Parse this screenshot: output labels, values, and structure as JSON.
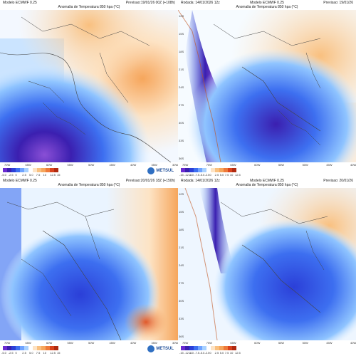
{
  "panels": [
    {
      "id": "tl",
      "model": "Modelo ECMWF 0.25",
      "left_text": "",
      "forecast": "Previsao:19/01/26 00Z (+108h)",
      "title": "Anomalia de Temperatura 850 hpa (°C)",
      "lat_labels": [],
      "lon_labels": [
        "70W",
        "65W",
        "60W",
        "55W",
        "50W",
        "45W",
        "40W",
        "35W",
        "30W"
      ],
      "legend_ticks": [
        "-5.0",
        "-2.5",
        "0",
        "2.5",
        "5.0",
        "7.5",
        "10",
        "12.5",
        "15"
      ],
      "show_logo": true,
      "logo_text": "METSUL"
    },
    {
      "id": "tr",
      "model": "Modelo ECMWF 0.25",
      "left_text": "Rodada: 14/01/2026 12z",
      "forecast": "Previsao: 19/01/26",
      "title": "Anomalia de Temperatura 850 hpa (°C)",
      "lat_labels": [
        "12S",
        "15S",
        "18S",
        "21S",
        "24S",
        "27S",
        "30S",
        "33S",
        "36S"
      ],
      "lon_labels": [
        "75W",
        "70W",
        "65W",
        "60W",
        "55W",
        "50W",
        "45W",
        "40W"
      ],
      "legend_ticks": [
        "-15",
        "-12.5",
        "-10",
        "-7.5",
        "-5.0",
        "-2.5",
        "0",
        "2.5",
        "5.0",
        "7.5",
        "10",
        "12.5"
      ],
      "show_logo": false,
      "logo_text": ""
    },
    {
      "id": "bl",
      "model": "Modelo ECMWF 0.25",
      "left_text": "",
      "forecast": "Previsao:20/01/26 18Z (+150h)",
      "title": "Anomalia de Temperatura 850 hpa (°C)",
      "lat_labels": [],
      "lon_labels": [
        "70W",
        "65W",
        "60W",
        "55W",
        "50W",
        "45W",
        "40W",
        "35W",
        "30W"
      ],
      "legend_ticks": [
        "-5.0",
        "-2.5",
        "0",
        "2.5",
        "5.0",
        "7.5",
        "10",
        "12.5",
        "15"
      ],
      "show_logo": true,
      "logo_text": "METSUL"
    },
    {
      "id": "br",
      "model": "Modelo ECMWF 0.25",
      "left_text": "Rodada: 14/01/2026 12z",
      "forecast": "Previsao: 20/01/26",
      "title": "Anomalia de Temperatura 850 hpa (°C)",
      "lat_labels": [
        "12S",
        "15S",
        "18S",
        "21S",
        "24S",
        "27S",
        "30S",
        "33S",
        "36S"
      ],
      "lon_labels": [
        "75W",
        "70W",
        "65W",
        "60W",
        "55W",
        "50W",
        "45W",
        "40W"
      ],
      "legend_ticks": [
        "-15",
        "-12.5",
        "-10",
        "-7.5",
        "-5.0",
        "-2.5",
        "0",
        "2.5",
        "5.0",
        "7.5",
        "10",
        "12.5"
      ],
      "show_logo": false,
      "logo_text": ""
    }
  ],
  "colors": {
    "strong_cold": "#3b1fb0",
    "cold": "#3d6ff0",
    "cool": "#8fc4ff",
    "light_cool": "#d8ecff",
    "neutral": "#ffffff",
    "light_warm": "#fde3c4",
    "warm": "#f6a65c",
    "hot": "#e1582a",
    "purple": "#8a4fd6"
  },
  "legend_colors": [
    "#6b2bd1",
    "#3b1fb0",
    "#2b3fd8",
    "#3d6ff0",
    "#6fa3ff",
    "#a8d1ff",
    "#ffffff",
    "#fde3c4",
    "#f9c07f",
    "#f6a65c",
    "#ee7a3a",
    "#d9431d",
    "#b02a10"
  ]
}
